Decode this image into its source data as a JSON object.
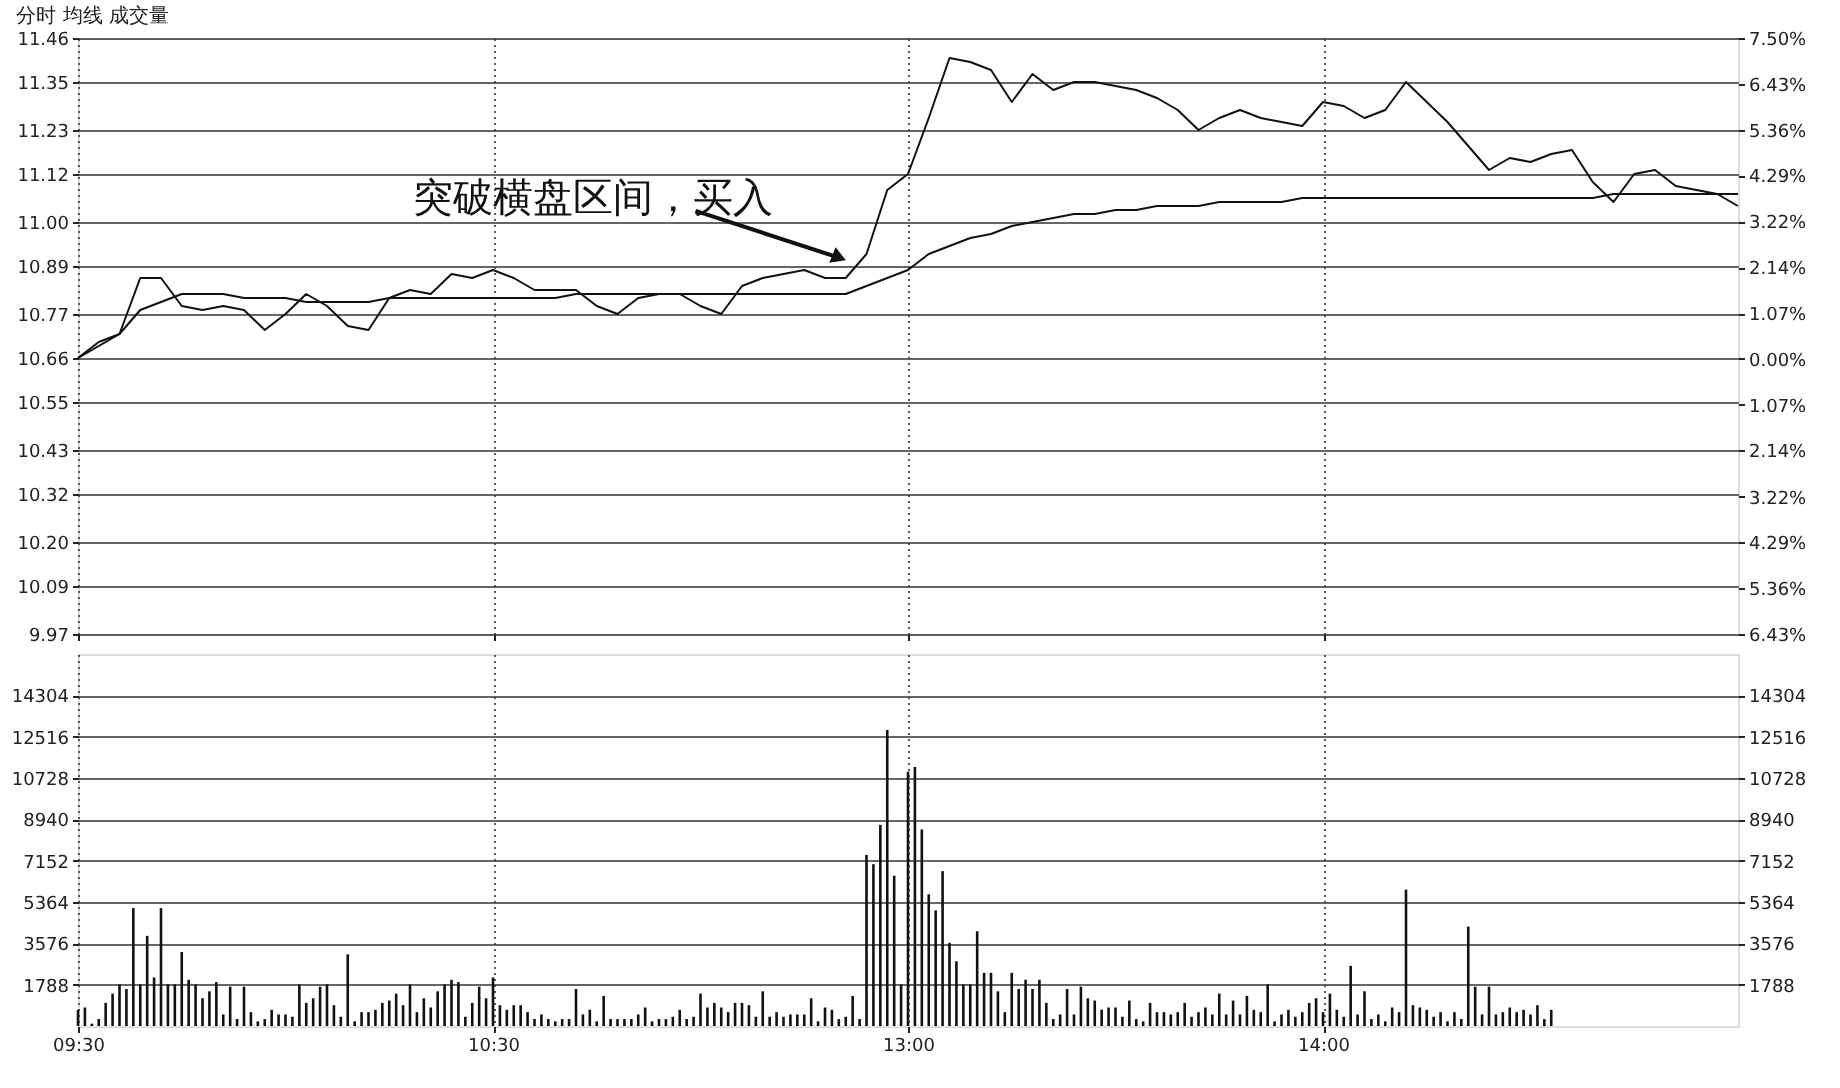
{
  "chart_data": [
    {
      "type": "line",
      "title": "分时 均线 成交量",
      "grid": true,
      "tick_labels": "y",
      "categories": [
        null,
        null,
        null,
        null,
        null,
        null,
        null,
        null,
        null,
        null,
        null,
        null,
        null,
        null,
        null,
        null,
        null,
        null,
        null,
        null,
        null,
        null,
        null,
        null,
        null,
        null,
        null,
        null,
        null,
        null,
        null,
        null,
        null,
        null,
        null,
        null,
        null,
        null,
        null,
        null,
        null,
        null,
        null,
        null,
        null,
        null,
        null,
        null,
        null,
        null,
        null,
        null,
        null,
        null,
        null,
        null,
        null,
        null,
        null,
        null,
        null,
        null,
        null,
        null,
        null,
        null,
        null,
        null,
        null,
        null,
        null,
        null,
        null,
        null,
        null,
        null,
        null,
        null,
        null,
        null,
        null
      ],
      "ylim": [
        9.97,
        11.46
      ],
      "yticks": [
        11.46,
        11.35,
        11.23,
        11.12,
        {
          "value": 11,
          "label": "11.00"
        },
        10.89,
        10.77,
        10.66,
        10.55,
        10.43,
        10.32,
        {
          "value": 10.2,
          "label": "10.20"
        },
        10.09,
        9.97
      ],
      "y2lim": [
        -6.43,
        7.5
      ],
      "y2ticks": [
        {
          "value": 7.5,
          "label": "7.50%"
        },
        {
          "value": 6.43,
          "label": "6.43%"
        },
        {
          "value": 5.36,
          "label": "5.36%"
        },
        {
          "value": 4.29,
          "label": "4.29%"
        },
        {
          "value": 3.22,
          "label": "3.22%"
        },
        {
          "value": 2.14,
          "label": "2.14%"
        },
        {
          "value": 1.07,
          "label": "1.07%"
        },
        {
          "value": 0,
          "label": "0.00%"
        },
        {
          "value": -1.07,
          "label": "1.07%"
        },
        {
          "value": -2.14,
          "label": "2.14%"
        },
        {
          "value": -3.22,
          "label": "3.22%"
        },
        {
          "value": -4.29,
          "label": "4.29%"
        },
        {
          "value": -5.36,
          "label": "5.36%"
        },
        {
          "value": -6.43,
          "label": "6.43%"
        }
      ],
      "annotations": [
        "突破横盘区间，买入"
      ],
      "series": [
        {
          "color": "#111111",
          "values": [
            10.66,
            10.69,
            10.72,
            10.86,
            10.86,
            10.79,
            10.78,
            10.79,
            10.78,
            10.73,
            10.77,
            10.82,
            10.79,
            10.74,
            10.73,
            10.81,
            10.83,
            10.82,
            10.87,
            10.86,
            10.88,
            10.86,
            10.83,
            10.83,
            10.83,
            10.79,
            10.77,
            10.81,
            10.82,
            10.82,
            10.79,
            10.77,
            10.84,
            10.86,
            10.87,
            10.88,
            10.86,
            10.86,
            10.92,
            11.08,
            11.12,
            11.26,
            11.41,
            11.4,
            11.38,
            11.3,
            11.37,
            11.33,
            11.35,
            11.35,
            11.34,
            11.33,
            11.31,
            11.28,
            11.23,
            11.26,
            11.28,
            11.26,
            11.25,
            11.24,
            11.3,
            11.29,
            11.26,
            11.28,
            11.35,
            11.3,
            11.25,
            11.19,
            11.13,
            11.16,
            11.15,
            11.17,
            11.18,
            11.1,
            11.05,
            11.12,
            11.13,
            11.09,
            11.08,
            11.07,
            11.04
          ]
        },
        {
          "color": "#111111",
          "values": [
            10.66,
            10.7,
            10.72,
            10.78,
            10.8,
            10.82,
            10.82,
            10.82,
            10.81,
            10.81,
            10.81,
            10.8,
            10.8,
            10.8,
            10.8,
            10.81,
            10.81,
            10.81,
            10.81,
            10.81,
            10.81,
            10.81,
            10.81,
            10.81,
            10.82,
            10.82,
            10.82,
            10.82,
            10.82,
            10.82,
            10.82,
            10.82,
            10.82,
            10.82,
            10.82,
            10.82,
            10.82,
            10.82,
            10.84,
            10.86,
            10.88,
            10.92,
            10.94,
            10.96,
            10.97,
            10.99,
            11.0,
            11.01,
            11.02,
            11.02,
            11.03,
            11.03,
            11.04,
            11.04,
            11.04,
            11.05,
            11.05,
            11.05,
            11.05,
            11.06,
            11.06,
            11.06,
            11.06,
            11.06,
            11.06,
            11.06,
            11.06,
            11.06,
            11.06,
            11.06,
            11.06,
            11.06,
            11.06,
            11.06,
            11.07,
            11.07,
            11.07,
            11.07,
            11.07,
            11.07,
            11.07
          ]
        }
      ]
    },
    {
      "type": "bar",
      "grid": true,
      "categories": [
        "09:30",
        null,
        null,
        null,
        null,
        null,
        null,
        null,
        null,
        null,
        null,
        null,
        null,
        null,
        null,
        null,
        null,
        null,
        null,
        null,
        null,
        null,
        null,
        null,
        null,
        null,
        null,
        null,
        null,
        null,
        null,
        null,
        null,
        null,
        null,
        null,
        null,
        null,
        null,
        null,
        null,
        null,
        null,
        null,
        null,
        null,
        null,
        null,
        null,
        null,
        null,
        null,
        null,
        null,
        null,
        null,
        null,
        null,
        null,
        null,
        "10:30",
        null,
        null,
        null,
        null,
        null,
        null,
        null,
        null,
        null,
        null,
        null,
        null,
        null,
        null,
        null,
        null,
        null,
        null,
        null,
        null,
        null,
        null,
        null,
        null,
        null,
        null,
        null,
        null,
        null,
        null,
        null,
        null,
        null,
        null,
        null,
        null,
        null,
        null,
        null,
        null,
        null,
        null,
        null,
        null,
        null,
        null,
        null,
        null,
        null,
        null,
        null,
        null,
        null,
        null,
        null,
        null,
        null,
        null,
        null,
        "13:00",
        null,
        null,
        null,
        null,
        null,
        null,
        null,
        null,
        null,
        null,
        null,
        null,
        null,
        null,
        null,
        null,
        null,
        null,
        null,
        null,
        null,
        null,
        null,
        null,
        null,
        null,
        null,
        null,
        null,
        null,
        null,
        null,
        null,
        null,
        null,
        null,
        null,
        null,
        null,
        null,
        null,
        null,
        null,
        null,
        null,
        null,
        null,
        null,
        null,
        null,
        null,
        null,
        null,
        null,
        null,
        null,
        null,
        null,
        null,
        "14:00",
        null,
        null,
        null,
        null,
        null,
        null,
        null,
        null,
        null,
        null,
        null,
        null,
        null,
        null,
        null,
        null,
        null,
        null,
        null,
        null,
        null,
        null,
        null,
        null,
        null,
        null,
        null,
        null,
        null,
        null,
        null,
        null,
        null,
        null,
        null,
        null,
        null,
        null,
        null,
        null,
        null,
        null,
        null,
        null,
        null,
        null,
        null,
        null,
        null,
        null,
        null,
        null,
        null,
        null,
        null,
        null,
        null,
        null,
        null,
        null
      ],
      "ylim": [
        0,
        16092
      ],
      "yticks": [
        1788,
        3576,
        5364,
        7152,
        8940,
        10728,
        12516,
        14304
      ],
      "y2lim": [
        0,
        16092
      ],
      "y2ticks": [
        1788,
        3576,
        5364,
        7152,
        8940,
        10728,
        12516,
        14304
      ],
      "series": [
        {
          "color": "#111111",
          "values": [
            700,
            800,
            100,
            300,
            1000,
            1400,
            1800,
            1600,
            5100,
            1800,
            3900,
            2100,
            5100,
            1800,
            1800,
            3200,
            2000,
            1800,
            1200,
            1500,
            1900,
            500,
            1700,
            300,
            1700,
            600,
            200,
            300,
            700,
            500,
            500,
            400,
            1800,
            1000,
            1200,
            1700,
            1800,
            900,
            400,
            3100,
            200,
            600,
            600,
            700,
            1000,
            1100,
            1400,
            900,
            1800,
            600,
            1200,
            800,
            1500,
            1800,
            2000,
            1900,
            400,
            1000,
            1700,
            1200,
            2100,
            900,
            700,
            900,
            900,
            600,
            300,
            500,
            300,
            200,
            300,
            300,
            1600,
            500,
            700,
            200,
            1300,
            300,
            300,
            300,
            300,
            500,
            800,
            200,
            300,
            300,
            400,
            700,
            300,
            400,
            1400,
            800,
            1000,
            800,
            600,
            1000,
            1000,
            900,
            400,
            1500,
            400,
            600,
            400,
            500,
            500,
            500,
            1200,
            200,
            800,
            700,
            300,
            400,
            1300,
            300,
            7400,
            7000,
            8700,
            12800,
            6500,
            1800,
            11000,
            11200,
            8500,
            5700,
            5000,
            6700,
            3600,
            2800,
            1800,
            1800,
            4100,
            2300,
            2300,
            1500,
            600,
            2300,
            1600,
            2000,
            1600,
            2000,
            1000,
            300,
            500,
            1600,
            500,
            1700,
            1200,
            1100,
            700,
            800,
            800,
            400,
            1100,
            300,
            200,
            1000,
            600,
            600,
            500,
            600,
            1000,
            400,
            600,
            800,
            500,
            1400,
            500,
            1100,
            500,
            1300,
            700,
            600,
            1800,
            200,
            500,
            700,
            400,
            600,
            1000,
            1200,
            600,
            1400,
            700,
            400,
            2600,
            500,
            1500,
            300,
            500,
            200,
            800,
            600,
            5900,
            900,
            800,
            700,
            400,
            600,
            200,
            600,
            300,
            4300,
            1700,
            500,
            1700,
            500,
            600,
            800,
            600,
            700,
            500,
            900,
            300,
            700,
            null,
            null,
            null,
            null,
            null,
            null,
            null,
            null,
            null,
            null,
            null,
            null,
            null,
            null,
            null,
            null,
            null,
            null,
            null,
            null,
            null,
            null,
            null,
            null,
            null,
            null,
            null
          ]
        }
      ]
    }
  ]
}
